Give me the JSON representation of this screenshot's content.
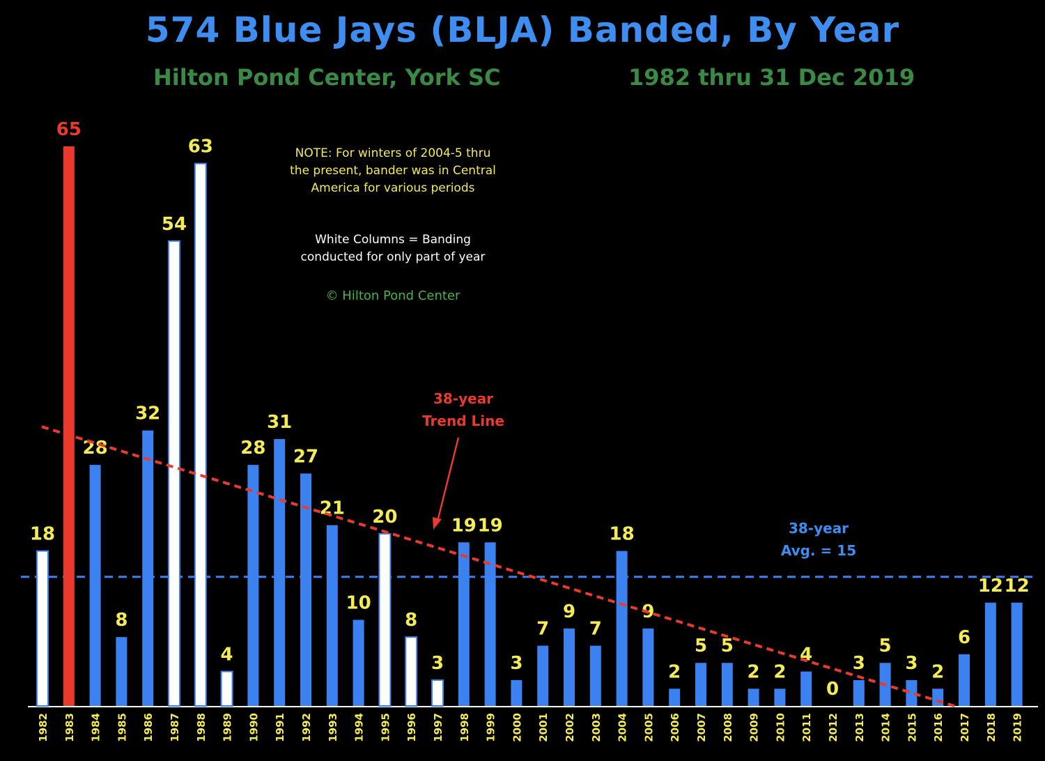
{
  "chart_data": {
    "type": "bar",
    "title": "574 Blue Jays (BLJA) Banded, By Year",
    "subtitle_left": "Hilton Pond Center, York SC",
    "subtitle_right": "1982 thru  31 Dec 2019",
    "categories": [
      "1982",
      "1983",
      "1984",
      "1985",
      "1986",
      "1987",
      "1988",
      "1989",
      "1990",
      "1991",
      "1992",
      "1993",
      "1994",
      "1995",
      "1996",
      "1997",
      "1998",
      "1999",
      "2000",
      "2001",
      "2002",
      "2003",
      "2004",
      "2005",
      "2006",
      "2007",
      "2008",
      "2009",
      "2010",
      "2011",
      "2012",
      "2013",
      "2014",
      "2015",
      "2016",
      "2017",
      "2018",
      "2019"
    ],
    "values": [
      18,
      65,
      28,
      8,
      32,
      54,
      63,
      4,
      28,
      31,
      27,
      21,
      10,
      20,
      8,
      3,
      19,
      19,
      3,
      7,
      9,
      7,
      18,
      9,
      2,
      5,
      5,
      2,
      2,
      4,
      0,
      3,
      5,
      3,
      2,
      6,
      12,
      12
    ],
    "bar_style": [
      "partial",
      "max",
      "full",
      "full",
      "full",
      "partial",
      "partial",
      "partial",
      "full",
      "full",
      "full",
      "full",
      "full",
      "partial",
      "partial",
      "partial",
      "full",
      "full",
      "full",
      "full",
      "full",
      "full",
      "full",
      "full",
      "full",
      "full",
      "full",
      "full",
      "full",
      "full",
      "full",
      "full",
      "full",
      "full",
      "full",
      "full",
      "full",
      "full"
    ],
    "colors": {
      "full": "#3b82f0",
      "partial": "#ffffff",
      "max": "#ea3a2e",
      "value_label": "#f4ec55",
      "max_label": "#ea3a2e",
      "trend": "#ea3a2e",
      "average": "#3b82f0"
    },
    "ylim": [
      0,
      65
    ],
    "average": {
      "value": 15,
      "label_line1": "38-year",
      "label_line2": "Avg. = 15"
    },
    "trend": {
      "start_value": 33,
      "end_value": 0,
      "label_line1": "38-year",
      "label_line2": "Trend Line"
    },
    "notes": {
      "note1": "NOTE: For winters of 2004-5 thru the present, bander was in Central America for various periods",
      "note2": "White Columns = Banding conducted for only part of year",
      "copyright": "© Hilton Pond Center"
    }
  }
}
